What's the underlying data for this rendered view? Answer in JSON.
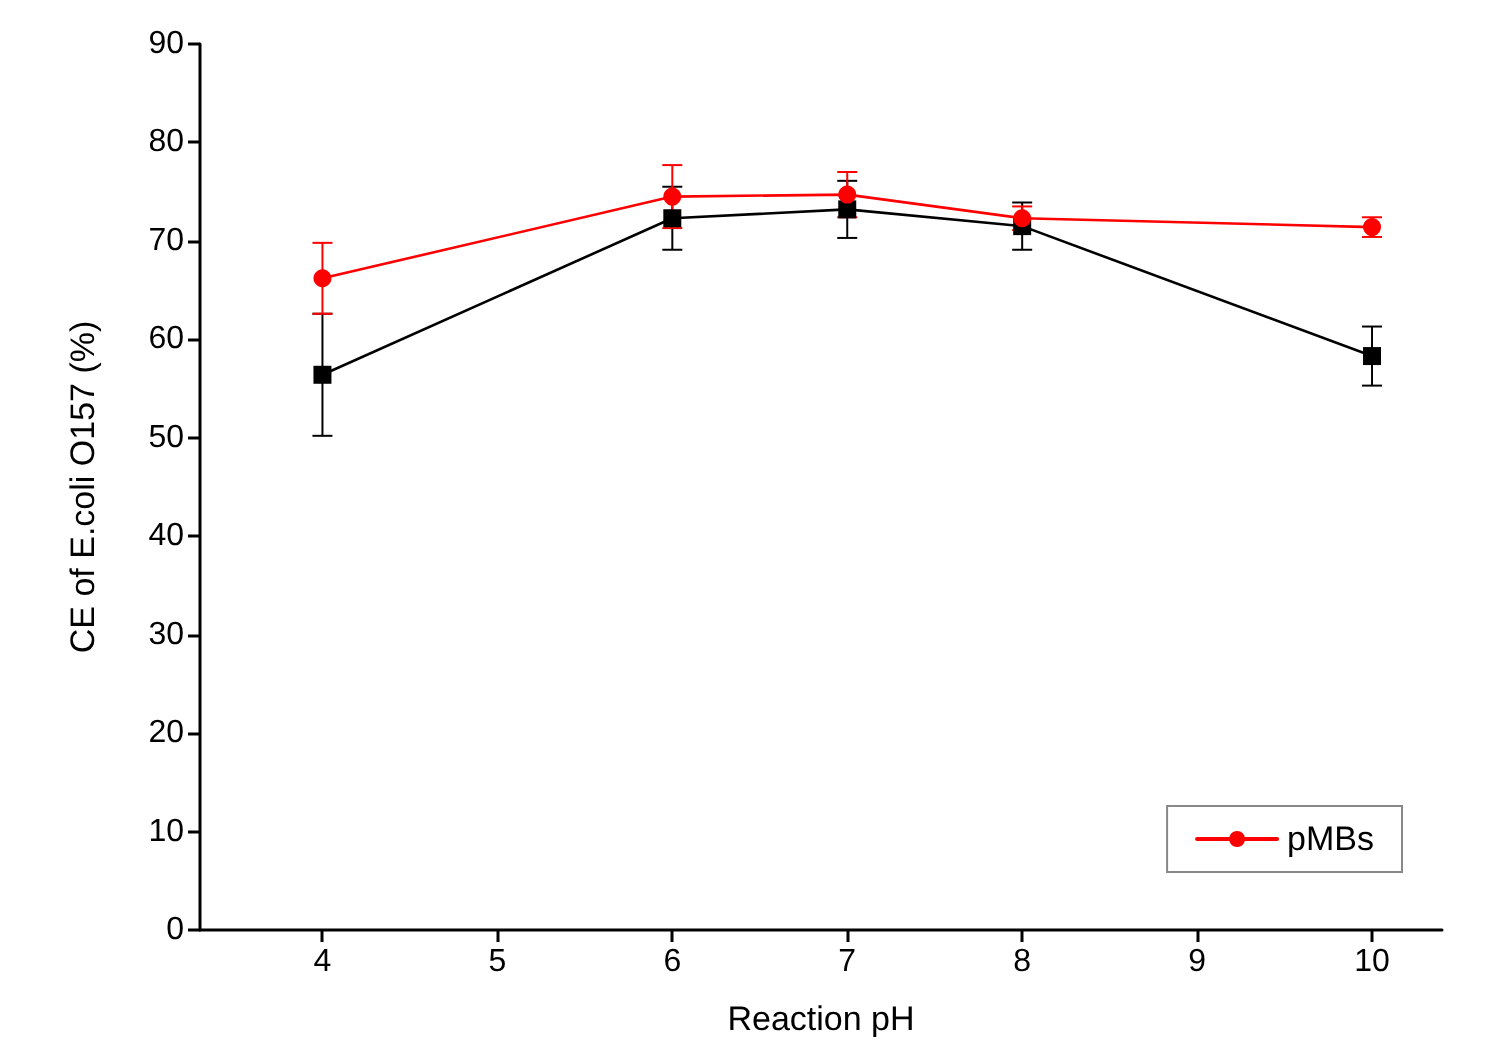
{
  "chart_data": {
    "type": "line",
    "xlabel": "Reaction pH",
    "ylabel": "CE of E.coli O157 (%)",
    "x": [
      4,
      6,
      7,
      8,
      10
    ],
    "xlim": [
      3.3,
      10.4
    ],
    "xticks": [
      4,
      5,
      6,
      7,
      8,
      9,
      10
    ],
    "ylim": [
      0,
      90
    ],
    "yticks": [
      0,
      10,
      20,
      30,
      40,
      50,
      60,
      70,
      80,
      90
    ],
    "grid": false,
    "legend": "bottom right",
    "series": [
      {
        "color": "#000000",
        "marker": "square",
        "values": [
          56.4,
          72.3,
          73.2,
          71.5,
          58.3
        ],
        "errors": [
          6.2,
          3.2,
          2.9,
          2.4,
          3.0
        ]
      },
      {
        "name": "pMBs",
        "color": "#ff0000",
        "marker": "circle",
        "values": [
          66.2,
          74.5,
          74.7,
          72.3,
          71.4
        ],
        "errors": [
          3.6,
          3.2,
          2.3,
          1.2,
          1.0
        ]
      }
    ]
  }
}
